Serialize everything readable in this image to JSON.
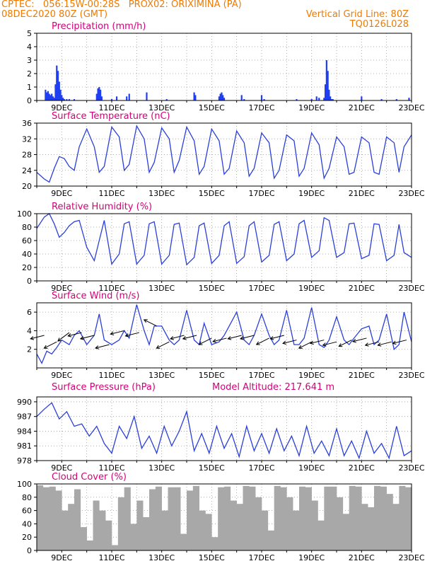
{
  "header": {
    "line1_left": "CPTEC:   056:15W-00:28S   PROX02: ORIXIMINA (PA)",
    "line2_left": "08DEC2020 80Z (GMT)",
    "line2_right": "Vertical Grid Line: 80Z",
    "line3_right": "TQ0126L028"
  },
  "colors": {
    "line": "#2a3fd8",
    "bar": "#1f3ff0",
    "cloud": "#a8a8a8",
    "title": "#d4007a",
    "header": "#f07a00"
  },
  "chart_data": [
    {
      "type": "bar",
      "title": "Precipitation (mm/h)",
      "ylim": [
        0,
        5
      ],
      "yticks": [
        "0",
        "1",
        "2",
        "3",
        "4",
        "5"
      ],
      "xticks": [
        "9DEC",
        "11DEC",
        "13DEC",
        "15DEC",
        "17DEC",
        "19DEC",
        "21DEC",
        "23DEC"
      ],
      "x": [
        8.35,
        8.4,
        8.45,
        8.5,
        8.55,
        8.6,
        8.65,
        8.7,
        8.75,
        8.8,
        8.85,
        8.9,
        8.95,
        9.0,
        9.05,
        9.1,
        9.2,
        9.3,
        9.5,
        10.4,
        10.45,
        10.5,
        10.55,
        10.6,
        11.0,
        11.2,
        11.6,
        11.7,
        12.4,
        13.2,
        14.3,
        14.35,
        15.3,
        15.35,
        15.4,
        15.45,
        15.5,
        16.2,
        16.3,
        17.0,
        17.1,
        18.4,
        19.0,
        19.2,
        19.3,
        19.5,
        19.55,
        19.6,
        19.65,
        19.7,
        19.75,
        19.8,
        19.85,
        21.0,
        21.8,
        22.4,
        22.9
      ],
      "values": [
        0.8,
        0.6,
        0.7,
        0.5,
        0.4,
        0.5,
        0.3,
        0.2,
        1.2,
        2.6,
        2.2,
        1.4,
        0.8,
        0.4,
        0.2,
        0.1,
        0.1,
        0.1,
        0.1,
        0.5,
        0.9,
        1.0,
        0.8,
        0.3,
        0.1,
        0.3,
        0.3,
        0.5,
        0.6,
        0.1,
        0.6,
        0.4,
        0.3,
        0.5,
        0.6,
        0.4,
        0.2,
        0.4,
        0.1,
        0.4,
        0.1,
        0.1,
        0.1,
        0.3,
        0.2,
        0.2,
        1.2,
        3.0,
        2.2,
        0.8,
        0.3,
        0.1,
        0.1,
        0.3,
        0.1,
        0.1,
        0.2
      ]
    },
    {
      "type": "line",
      "title": "Surface Temperature (nC)",
      "ylim": [
        20,
        36
      ],
      "yticks": [
        "20",
        "24",
        "28",
        "32",
        "36"
      ],
      "xticks": [
        "9DEC",
        "11DEC",
        "13DEC",
        "15DEC",
        "17DEC",
        "19DEC",
        "21DEC",
        "23DEC"
      ],
      "x": [
        8.0,
        8.3,
        8.5,
        8.7,
        8.9,
        9.1,
        9.3,
        9.5,
        9.7,
        10.0,
        10.3,
        10.5,
        10.7,
        11.0,
        11.3,
        11.5,
        11.7,
        12.0,
        12.3,
        12.5,
        12.7,
        13.0,
        13.3,
        13.5,
        13.7,
        14.0,
        14.3,
        14.5,
        14.7,
        15.0,
        15.3,
        15.5,
        15.7,
        16.0,
        16.3,
        16.5,
        16.7,
        17.0,
        17.3,
        17.5,
        17.7,
        18.0,
        18.3,
        18.5,
        18.7,
        19.0,
        19.3,
        19.5,
        19.7,
        20.0,
        20.3,
        20.5,
        20.7,
        21.0,
        21.3,
        21.5,
        21.7,
        22.0,
        22.3,
        22.5,
        22.7,
        23.0
      ],
      "values": [
        23.5,
        21.8,
        21.0,
        24.5,
        27.5,
        27.0,
        25.0,
        24.0,
        30.0,
        34.5,
        30.0,
        23.5,
        25.0,
        35.0,
        32.5,
        24.0,
        25.5,
        35.3,
        32.0,
        23.5,
        26.0,
        34.8,
        32.0,
        23.5,
        26.5,
        35.0,
        31.5,
        23.0,
        25.0,
        34.5,
        31.5,
        23.0,
        24.5,
        34.0,
        31.0,
        22.5,
        24.5,
        33.5,
        31.0,
        22.0,
        24.0,
        33.0,
        31.5,
        22.5,
        24.5,
        33.5,
        30.5,
        22.0,
        24.5,
        32.5,
        30.0,
        23.0,
        23.5,
        32.5,
        31.0,
        23.5,
        23.0,
        32.5,
        31.0,
        23.5,
        30.0,
        33.0
      ]
    },
    {
      "type": "line",
      "title": "Relative Humidity (%)",
      "ylim": [
        0,
        100
      ],
      "yticks": [
        "0",
        "20",
        "40",
        "60",
        "80",
        "100"
      ],
      "xticks": [
        "9DEC",
        "11DEC",
        "13DEC",
        "15DEC",
        "17DEC",
        "19DEC",
        "21DEC",
        "23DEC"
      ],
      "x": [
        8.0,
        8.3,
        8.5,
        8.7,
        8.9,
        9.1,
        9.3,
        9.5,
        9.7,
        10.0,
        10.3,
        10.5,
        10.7,
        11.0,
        11.3,
        11.5,
        11.7,
        12.0,
        12.3,
        12.5,
        12.7,
        13.0,
        13.3,
        13.5,
        13.7,
        14.0,
        14.3,
        14.5,
        14.7,
        15.0,
        15.3,
        15.5,
        15.7,
        16.0,
        16.3,
        16.5,
        16.7,
        17.0,
        17.3,
        17.5,
        17.7,
        18.0,
        18.3,
        18.5,
        18.7,
        19.0,
        19.3,
        19.5,
        19.7,
        20.0,
        20.3,
        20.5,
        20.7,
        21.0,
        21.3,
        21.5,
        21.7,
        22.0,
        22.3,
        22.5,
        22.7,
        23.0
      ],
      "values": [
        78,
        95,
        100,
        85,
        65,
        72,
        82,
        88,
        90,
        50,
        30,
        60,
        90,
        25,
        40,
        85,
        88,
        25,
        38,
        85,
        88,
        25,
        38,
        84,
        86,
        24,
        35,
        82,
        86,
        26,
        38,
        82,
        88,
        26,
        36,
        82,
        88,
        28,
        38,
        84,
        88,
        30,
        40,
        85,
        90,
        35,
        45,
        94,
        90,
        35,
        42,
        85,
        86,
        33,
        38,
        85,
        84,
        30,
        38,
        84,
        42,
        35
      ]
    },
    {
      "type": "line",
      "title": "Surface Wind (m/s)",
      "ylim": [
        0,
        7
      ],
      "yticks": [
        "2",
        "4",
        "6"
      ],
      "xticks": [
        "9DEC",
        "11DEC",
        "13DEC",
        "15DEC",
        "17DEC",
        "19DEC",
        "21DEC",
        "23DEC"
      ],
      "x": [
        8.0,
        8.2,
        8.4,
        8.6,
        8.8,
        9.0,
        9.3,
        9.5,
        9.7,
        10.0,
        10.3,
        10.5,
        10.7,
        11.0,
        11.3,
        11.5,
        11.7,
        12.0,
        12.3,
        12.5,
        12.7,
        13.0,
        13.3,
        13.5,
        13.7,
        14.0,
        14.3,
        14.5,
        14.7,
        15.0,
        15.3,
        15.5,
        15.7,
        16.0,
        16.3,
        16.5,
        16.7,
        17.0,
        17.3,
        17.5,
        17.7,
        18.0,
        18.3,
        18.5,
        18.7,
        19.0,
        19.3,
        19.5,
        19.7,
        20.0,
        20.3,
        20.5,
        20.7,
        21.0,
        21.3,
        21.5,
        21.7,
        22.0,
        22.3,
        22.5,
        22.7,
        23.0
      ],
      "values": [
        1.5,
        0.5,
        1.8,
        1.5,
        2.2,
        3.0,
        2.5,
        3.5,
        4.0,
        2.5,
        3.5,
        5.8,
        3.0,
        2.5,
        3.0,
        4.0,
        3.2,
        6.8,
        4.0,
        2.5,
        4.5,
        4.5,
        3.0,
        2.5,
        3.0,
        6.2,
        3.0,
        2.5,
        4.8,
        2.5,
        2.8,
        3.5,
        4.5,
        6.0,
        3.0,
        2.5,
        3.5,
        5.8,
        3.5,
        2.5,
        3.0,
        6.2,
        2.5,
        2.5,
        3.2,
        6.5,
        2.5,
        2.2,
        3.0,
        5.5,
        3.0,
        2.5,
        3.2,
        4.2,
        4.5,
        2.5,
        3.0,
        5.8,
        2.0,
        2.5,
        6.0,
        2.8
      ],
      "vectors_x": [
        8.3,
        8.8,
        9.3,
        9.8,
        10.3,
        10.9,
        11.5,
        12.1,
        12.8,
        13.3,
        13.9,
        14.4,
        15.0,
        15.6,
        16.2,
        16.7,
        17.3,
        17.9,
        18.4,
        19.0,
        19.5,
        20.0,
        20.6,
        21.2,
        21.7,
        22.2,
        22.8
      ],
      "vectors_dx": [
        -4,
        -4,
        -4,
        -4,
        -4,
        -4,
        -4,
        -4,
        -4,
        -4,
        -4,
        -4,
        -4,
        -4,
        -4,
        -4,
        -4,
        -4,
        -4,
        -4,
        -4,
        -4,
        -4,
        -4,
        -4,
        -4,
        -4
      ],
      "vectors_dy": [
        -1,
        -2,
        -3,
        -1,
        -1,
        -1,
        -1,
        -1,
        2,
        -2,
        -1,
        -1,
        -2,
        -1,
        -1,
        -1,
        -2,
        -1,
        -1,
        -2,
        -1,
        -1,
        -2,
        -1,
        -1,
        -1,
        -1
      ],
      "vectors_v": [
        3.5,
        2.8,
        3.8,
        3.8,
        3.5,
        2.5,
        4.0,
        3.8,
        4.5,
        2.8,
        3.5,
        3.5,
        3.2,
        3.2,
        3.5,
        3.5,
        3.2,
        3.5,
        3.0,
        2.8,
        3.0,
        2.8,
        3.0,
        3.2,
        2.8,
        2.8,
        3.0
      ]
    },
    {
      "type": "line",
      "title": "Surface Pressure (hPa)",
      "annotation": "Model Altitude: 217.641 m",
      "ylim": [
        978,
        991
      ],
      "yticks": [
        "978",
        "981",
        "984",
        "987",
        "990"
      ],
      "xticks": [
        "9DEC",
        "11DEC",
        "13DEC",
        "15DEC",
        "17DEC",
        "19DEC",
        "21DEC",
        "23DEC"
      ],
      "x": [
        8.0,
        8.3,
        8.6,
        8.9,
        9.2,
        9.5,
        9.8,
        10.1,
        10.4,
        10.7,
        11.0,
        11.3,
        11.6,
        11.9,
        12.2,
        12.5,
        12.8,
        13.1,
        13.4,
        13.7,
        14.0,
        14.3,
        14.6,
        14.9,
        15.2,
        15.5,
        15.8,
        16.1,
        16.4,
        16.7,
        17.0,
        17.3,
        17.6,
        17.9,
        18.2,
        18.5,
        18.8,
        19.1,
        19.4,
        19.7,
        20.0,
        20.3,
        20.6,
        20.9,
        21.2,
        21.5,
        21.8,
        22.1,
        22.4,
        22.7,
        23.0
      ],
      "values": [
        987,
        988.5,
        989.8,
        986.5,
        988,
        985,
        985.5,
        983,
        985,
        981.5,
        979.5,
        985,
        982.5,
        987,
        980.5,
        983,
        979.5,
        985,
        981,
        984,
        988,
        980,
        983.5,
        979.5,
        985,
        980.5,
        983.5,
        978.8,
        985,
        980,
        983.5,
        979.5,
        984.5,
        980,
        983,
        979,
        985,
        979.5,
        982,
        979,
        984.5,
        979,
        982,
        978.5,
        984,
        979.5,
        981.5,
        978.5,
        985,
        979,
        980
      ]
    },
    {
      "type": "bar",
      "title": "Cloud Cover (%)",
      "ylim": [
        0,
        100
      ],
      "yticks": [
        "0",
        "20",
        "40",
        "60",
        "80",
        "100"
      ],
      "xticks": [
        "9DEC",
        "11DEC",
        "13DEC",
        "15DEC",
        "17DEC",
        "19DEC",
        "21DEC",
        "23DEC"
      ],
      "x": [
        8.0,
        8.25,
        8.5,
        8.75,
        9.0,
        9.25,
        9.5,
        9.75,
        10.0,
        10.25,
        10.5,
        10.75,
        11.0,
        11.25,
        11.5,
        11.75,
        12.0,
        12.25,
        12.5,
        12.75,
        13.0,
        13.25,
        13.5,
        13.75,
        14.0,
        14.25,
        14.5,
        14.75,
        15.0,
        15.25,
        15.5,
        15.75,
        16.0,
        16.25,
        16.5,
        16.75,
        17.0,
        17.25,
        17.5,
        17.75,
        18.0,
        18.25,
        18.5,
        18.75,
        19.0,
        19.25,
        19.5,
        19.75,
        20.0,
        20.25,
        20.5,
        20.75,
        21.0,
        21.25,
        21.5,
        21.75,
        22.0,
        22.25,
        22.5,
        22.75
      ],
      "values": [
        98,
        95,
        96,
        90,
        60,
        70,
        92,
        35,
        15,
        75,
        60,
        45,
        8,
        80,
        95,
        40,
        75,
        50,
        92,
        96,
        60,
        95,
        95,
        25,
        90,
        97,
        60,
        55,
        20,
        95,
        96,
        75,
        70,
        97,
        96,
        80,
        60,
        30,
        97,
        95,
        80,
        60,
        96,
        95,
        75,
        45,
        96,
        96,
        80,
        55,
        97,
        96,
        70,
        65,
        97,
        96,
        85,
        70,
        97,
        95
      ]
    }
  ]
}
